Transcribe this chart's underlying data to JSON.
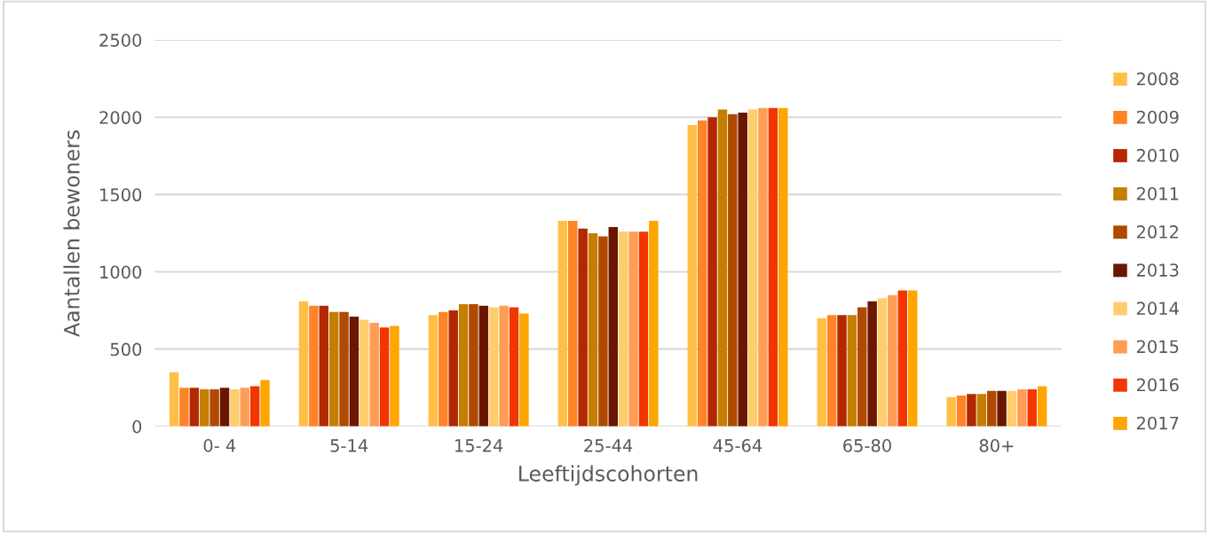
{
  "chart_data": {
    "type": "bar",
    "xlabel": "Leeftijdscohorten",
    "ylabel": "Aantallen bewoners",
    "categories": [
      "0- 4",
      "5-14",
      "15-24",
      "25-44",
      "45-64",
      "65-80",
      "80+"
    ],
    "series": [
      {
        "name": "2008",
        "color": "#ffbf47",
        "values": [
          350,
          810,
          720,
          1330,
          1950,
          700,
          190
        ]
      },
      {
        "name": "2009",
        "color": "#ff8427",
        "values": [
          250,
          780,
          740,
          1330,
          1980,
          720,
          200
        ]
      },
      {
        "name": "2010",
        "color": "#b22800",
        "values": [
          250,
          780,
          750,
          1280,
          2000,
          720,
          210
        ]
      },
      {
        "name": "2011",
        "color": "#c57e00",
        "values": [
          240,
          740,
          790,
          1250,
          2050,
          720,
          210
        ]
      },
      {
        "name": "2012",
        "color": "#b04a00",
        "values": [
          240,
          740,
          790,
          1230,
          2020,
          770,
          230
        ]
      },
      {
        "name": "2013",
        "color": "#6b1700",
        "values": [
          250,
          710,
          780,
          1290,
          2030,
          810,
          230
        ]
      },
      {
        "name": "2014",
        "color": "#ffcd6e",
        "values": [
          240,
          690,
          770,
          1260,
          2050,
          830,
          230
        ]
      },
      {
        "name": "2015",
        "color": "#ff9d55",
        "values": [
          250,
          670,
          780,
          1260,
          2060,
          850,
          240
        ]
      },
      {
        "name": "2016",
        "color": "#f33600",
        "values": [
          260,
          640,
          770,
          1260,
          2060,
          880,
          240
        ]
      },
      {
        "name": "2017",
        "color": "#ffa500",
        "values": [
          300,
          650,
          730,
          1330,
          2060,
          880,
          260
        ]
      }
    ],
    "ylim": [
      0,
      2500
    ],
    "yticks": [
      0,
      500,
      1000,
      1500,
      2000,
      2500
    ],
    "grid": "y",
    "legend": "right"
  }
}
